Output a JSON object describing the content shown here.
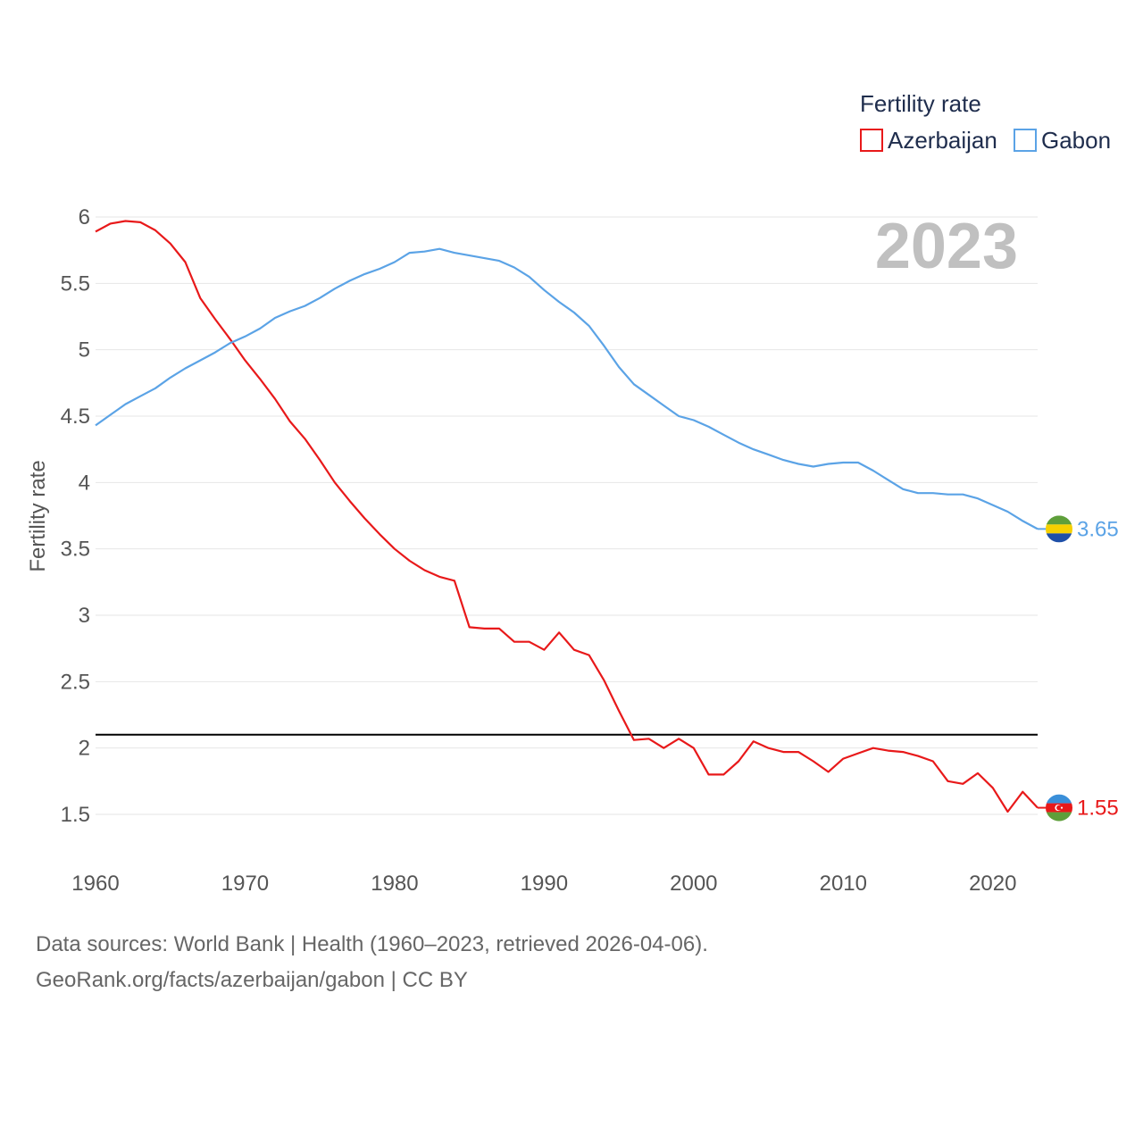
{
  "chart_data": {
    "type": "line",
    "legend_title": "Fertility rate",
    "ylabel": "Fertility rate",
    "xlabel": "",
    "current_year_label": "2023",
    "xlim": [
      1960,
      2023
    ],
    "ylim": [
      1.2,
      6.0
    ],
    "x_ticks": [
      1960,
      1970,
      1980,
      1990,
      2000,
      2010,
      2020
    ],
    "y_ticks": [
      1.5,
      2,
      2.5,
      3,
      3.5,
      4,
      4.5,
      5,
      5.5,
      6
    ],
    "y_tick_labels": [
      "1.5",
      "2",
      "2.5",
      "3",
      "3.5",
      "4",
      "4.5",
      "5",
      "5.5",
      "6"
    ],
    "x_tick_labels": [
      "1960",
      "1970",
      "1980",
      "1990",
      "2000",
      "2010",
      "2020"
    ],
    "reference_line": {
      "y": 2.1,
      "color": "#000000"
    },
    "x": [
      1960,
      1961,
      1962,
      1963,
      1964,
      1965,
      1966,
      1967,
      1968,
      1969,
      1970,
      1971,
      1972,
      1973,
      1974,
      1975,
      1976,
      1977,
      1978,
      1979,
      1980,
      1981,
      1982,
      1983,
      1984,
      1985,
      1986,
      1987,
      1988,
      1989,
      1990,
      1991,
      1992,
      1993,
      1994,
      1995,
      1996,
      1997,
      1998,
      1999,
      2000,
      2001,
      2002,
      2003,
      2004,
      2005,
      2006,
      2007,
      2008,
      2009,
      2010,
      2011,
      2012,
      2013,
      2014,
      2015,
      2016,
      2017,
      2018,
      2019,
      2020,
      2021,
      2022,
      2023
    ],
    "series": [
      {
        "name": "Azerbaijan",
        "color": "#e8191a",
        "end_label": "1.55",
        "flag": "azerbaijan-flag",
        "values": [
          5.89,
          5.95,
          5.97,
          5.96,
          5.9,
          5.8,
          5.66,
          5.39,
          5.23,
          5.08,
          4.92,
          4.78,
          4.63,
          4.46,
          4.33,
          4.17,
          4.0,
          3.86,
          3.73,
          3.61,
          3.5,
          3.41,
          3.34,
          3.29,
          3.26,
          2.91,
          2.9,
          2.9,
          2.8,
          2.8,
          2.74,
          2.87,
          2.74,
          2.7,
          2.51,
          2.28,
          2.06,
          2.07,
          2.0,
          2.07,
          2.0,
          1.8,
          1.8,
          1.9,
          2.05,
          2.0,
          1.97,
          1.97,
          1.9,
          1.82,
          1.92,
          1.96,
          2.0,
          1.98,
          1.97,
          1.94,
          1.9,
          1.75,
          1.73,
          1.81,
          1.7,
          1.52,
          1.67,
          1.55
        ]
      },
      {
        "name": "Gabon",
        "color": "#5ba3e6",
        "end_label": "3.65",
        "flag": "gabon-flag",
        "values": [
          4.43,
          4.51,
          4.59,
          4.65,
          4.71,
          4.79,
          4.86,
          4.92,
          4.98,
          5.05,
          5.1,
          5.16,
          5.24,
          5.29,
          5.33,
          5.39,
          5.46,
          5.52,
          5.57,
          5.61,
          5.66,
          5.73,
          5.74,
          5.76,
          5.73,
          5.71,
          5.69,
          5.67,
          5.62,
          5.55,
          5.45,
          5.36,
          5.28,
          5.18,
          5.03,
          4.87,
          4.74,
          4.66,
          4.58,
          4.5,
          4.47,
          4.42,
          4.36,
          4.3,
          4.25,
          4.21,
          4.17,
          4.14,
          4.12,
          4.14,
          4.15,
          4.15,
          4.09,
          4.02,
          3.95,
          3.92,
          3.92,
          3.91,
          3.91,
          3.88,
          3.83,
          3.78,
          3.71,
          3.65
        ]
      }
    ]
  },
  "footer": {
    "source_line": "Data sources: World Bank | Health (1960–2023, retrieved 2026-04-06).",
    "url_line": "GeoRank.org/facts/azerbaijan/gabon | CC BY"
  }
}
